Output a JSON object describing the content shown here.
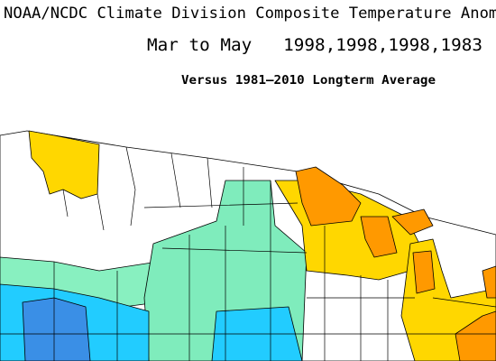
{
  "header": {
    "title": "NOAA/NCDC Climate Division Composite Temperature Anomalies",
    "subtitle": "Mar to May   1998,1998,1998,1983",
    "note": "Versus 1981–2010 Longterm Average"
  }
}
